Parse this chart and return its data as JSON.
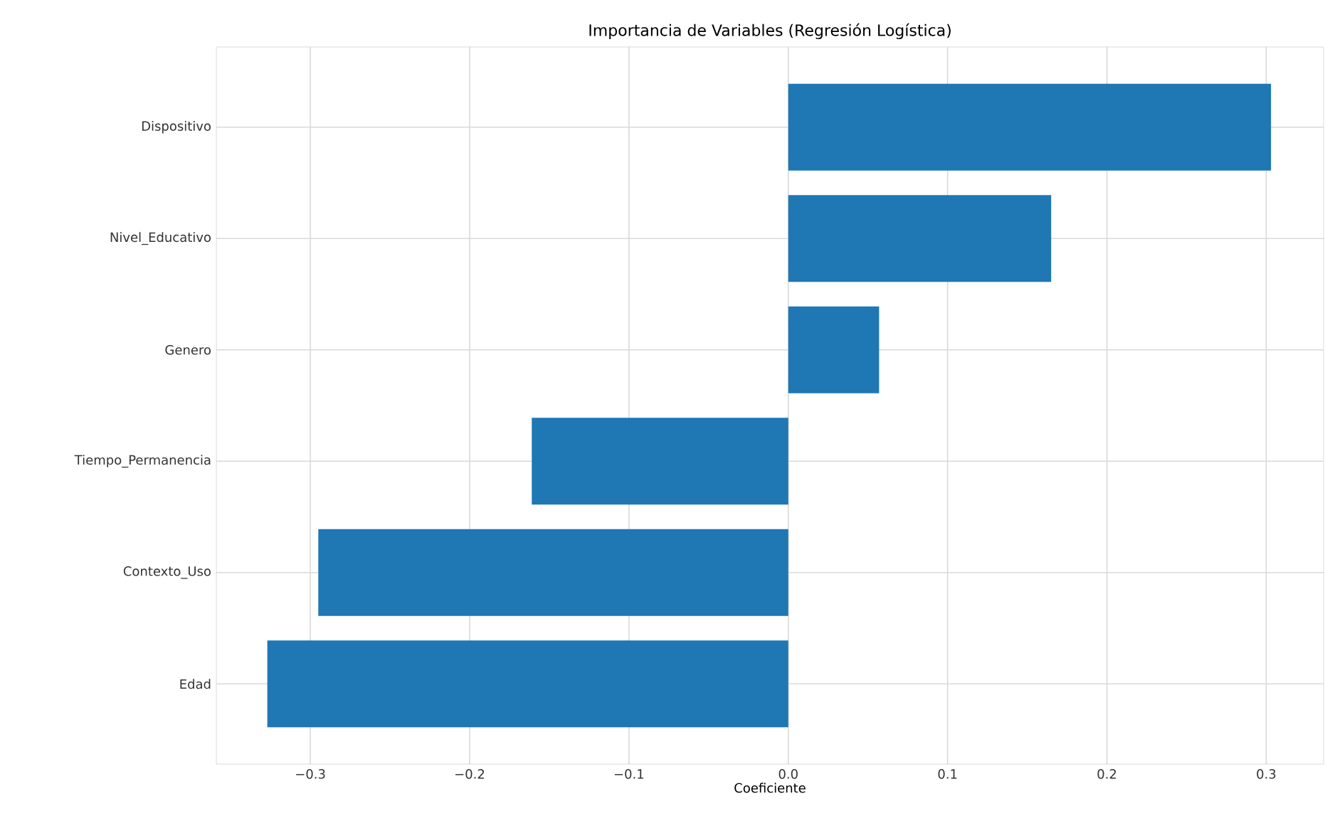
{
  "chart_data": {
    "type": "bar",
    "orientation": "horizontal",
    "title": "Importancia de Variables (Regresión Logística)",
    "xlabel": "Coeficiente",
    "categories": [
      "Dispositivo",
      "Nivel_Educativo",
      "Genero",
      "Tiempo_Permanencia",
      "Contexto_Uso",
      "Edad"
    ],
    "values": [
      0.303,
      0.165,
      0.057,
      -0.161,
      -0.295,
      -0.327
    ],
    "color": "#1f77b4",
    "xlim": [
      -0.359,
      0.336
    ],
    "xticks": [
      {
        "value": -0.3,
        "label": "−0.3"
      },
      {
        "value": -0.2,
        "label": "−0.2"
      },
      {
        "value": -0.1,
        "label": "−0.1"
      },
      {
        "value": 0.0,
        "label": "0.0"
      },
      {
        "value": 0.1,
        "label": "0.1"
      },
      {
        "value": 0.2,
        "label": "0.2"
      },
      {
        "value": 0.3,
        "label": "0.3"
      }
    ],
    "grid": true
  }
}
